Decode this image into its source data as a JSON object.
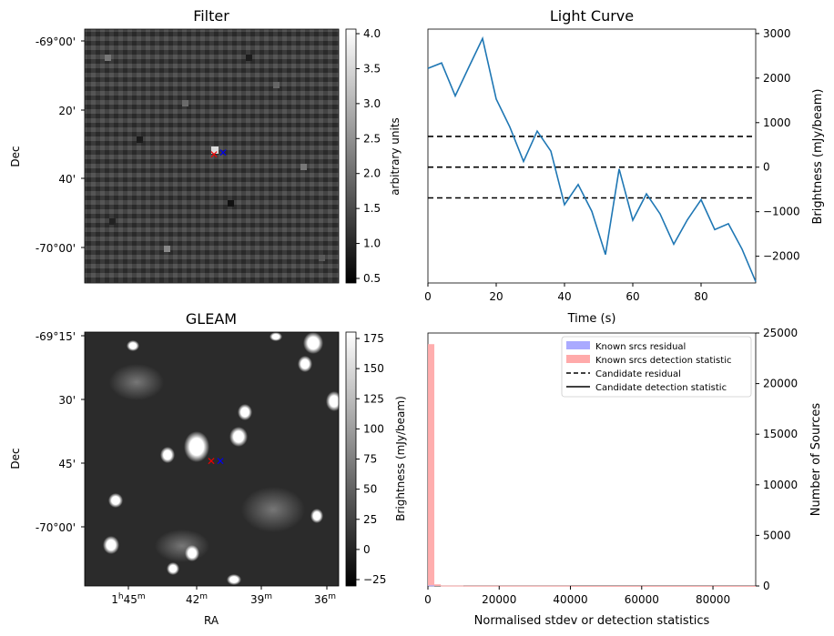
{
  "panels": {
    "filter": {
      "title": "Filter",
      "ylabel": "Dec",
      "dec_ticks": [
        "-69°00'",
        "20'",
        "40'",
        "-70°00'"
      ],
      "colorbar": {
        "label": "arbitrary units",
        "ticks": [
          "4.0",
          "3.5",
          "3.0",
          "2.5",
          "2.0",
          "1.5",
          "1.0",
          "0.5"
        ]
      }
    },
    "gleam": {
      "title": "GLEAM",
      "xlabel": "RA",
      "ylabel": "Dec",
      "dec_ticks": [
        "-69°15'",
        "30'",
        "45'",
        "-70°00'"
      ],
      "ra_ticks": [
        "1h45m",
        "42m",
        "39m",
        "36m"
      ],
      "colorbar": {
        "label": "Brightness (mJy/beam)",
        "ticks": [
          "175",
          "150",
          "125",
          "100",
          "75",
          "50",
          "25",
          "0",
          "−25"
        ]
      }
    }
  },
  "chart_data": [
    {
      "type": "line",
      "title": "Light Curve",
      "xlabel": "Time (s)",
      "ylabel": "Brightness (mJy/beam)",
      "xlim": [
        0,
        96
      ],
      "ylim": [
        -2600,
        3100
      ],
      "x_ticks": [
        0,
        20,
        40,
        60,
        80
      ],
      "y_ticks": [
        -2000,
        -1000,
        0,
        1000,
        2000,
        3000
      ],
      "series": [
        {
          "color": "#1f77b4",
          "x": [
            0,
            4,
            8,
            12,
            16,
            20,
            24,
            28,
            32,
            36,
            40,
            44,
            48,
            52,
            56,
            60,
            64,
            68,
            72,
            76,
            80,
            84,
            88,
            92,
            96
          ],
          "y": [
            2220,
            2340,
            1600,
            2250,
            2890,
            1530,
            900,
            130,
            810,
            360,
            -840,
            -390,
            -990,
            -1960,
            -40,
            -1190,
            -600,
            -1050,
            -1730,
            -1180,
            -730,
            -1400,
            -1270,
            -1840,
            -2570
          ]
        }
      ],
      "hlines": [
        {
          "y": 690,
          "style": "dashed",
          "color": "#000000"
        },
        {
          "y": 0,
          "style": "dashed",
          "color": "#000000"
        },
        {
          "y": -690,
          "style": "dashed",
          "color": "#000000"
        }
      ]
    },
    {
      "type": "bar",
      "xlabel": "Normalised stdev or detection statistics",
      "ylabel": "Number of Sources",
      "xlim": [
        0,
        92000
      ],
      "ylim": [
        0,
        25000
      ],
      "x_ticks": [
        0,
        20000,
        40000,
        60000,
        80000
      ],
      "y_ticks": [
        0,
        5000,
        10000,
        15000,
        20000,
        25000
      ],
      "legend": {
        "placement": "top-right",
        "entries": [
          {
            "label": "Known srcs residual",
            "kind": "patch",
            "color": "#aaaaff"
          },
          {
            "label": "Known srcs detection statistic",
            "kind": "patch",
            "color": "#ffaaaa"
          },
          {
            "label": "Candidate residual",
            "kind": "dashed-line",
            "color": "#000000"
          },
          {
            "label": "Candidate detection statistic",
            "kind": "solid-line",
            "color": "#000000"
          }
        ]
      },
      "series": [
        {
          "name": "Known srcs detection statistic",
          "color": "#ffaaaa",
          "bins": [
            {
              "x0": 0,
              "x1": 1800,
              "count": 23900
            },
            {
              "x0": 1800,
              "x1": 3600,
              "count": 160
            },
            {
              "x0": 3600,
              "x1": 10000,
              "count": 40
            },
            {
              "x0": 10000,
              "x1": 40000,
              "count": 25
            },
            {
              "x0": 40000,
              "x1": 92000,
              "count": 10
            }
          ]
        },
        {
          "name": "Known srcs residual",
          "color": "#aaaaff",
          "bins": [
            {
              "x0": 0,
              "x1": 1800,
              "count": 60
            }
          ]
        }
      ]
    }
  ]
}
